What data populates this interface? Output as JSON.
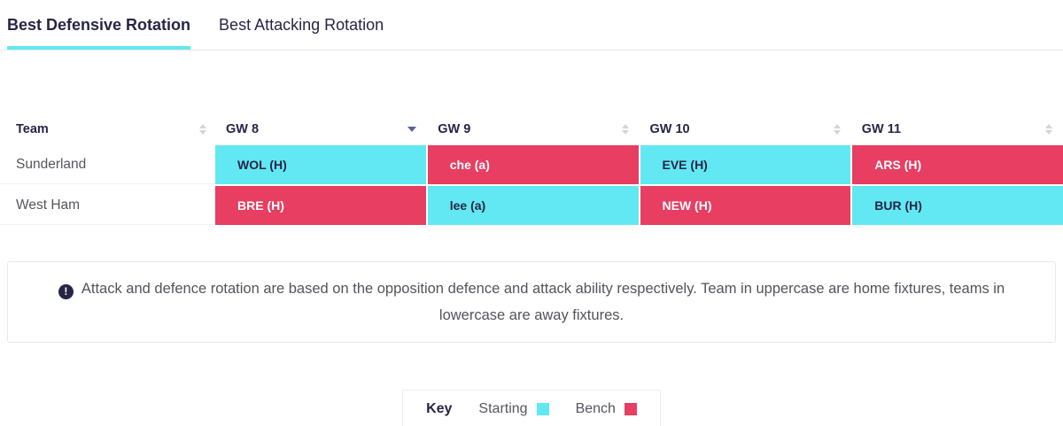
{
  "tabs": [
    {
      "label": "Best Defensive Rotation",
      "active": true
    },
    {
      "label": "Best Attacking Rotation",
      "active": false
    }
  ],
  "table": {
    "columns": [
      {
        "label": "Team",
        "sort": "none"
      },
      {
        "label": "GW 8",
        "sort": "desc"
      },
      {
        "label": "GW 9",
        "sort": "none"
      },
      {
        "label": "GW 10",
        "sort": "none"
      },
      {
        "label": "GW 11",
        "sort": "none"
      }
    ],
    "rows": [
      {
        "team": "Sunderland",
        "fixtures": [
          {
            "label": "WOL (H)",
            "status": "starting"
          },
          {
            "label": "che (a)",
            "status": "bench"
          },
          {
            "label": "EVE (H)",
            "status": "starting"
          },
          {
            "label": "ARS (H)",
            "status": "bench"
          }
        ]
      },
      {
        "team": "West Ham",
        "fixtures": [
          {
            "label": "BRE (H)",
            "status": "bench"
          },
          {
            "label": "lee (a)",
            "status": "starting"
          },
          {
            "label": "NEW (H)",
            "status": "bench"
          },
          {
            "label": "BUR (H)",
            "status": "starting"
          }
        ]
      }
    ]
  },
  "note": {
    "icon": "exclamation-circle-icon",
    "text": "Attack and defence rotation are based on the opposition defence and attack ability respectively. Team in uppercase are home fixtures, teams in lowercase are away fixtures."
  },
  "key": {
    "title": "Key",
    "items": [
      {
        "label": "Starting",
        "color": "#62e8f2"
      },
      {
        "label": "Bench",
        "color": "#e73e62"
      }
    ]
  },
  "colors": {
    "starting": "#62e8f2",
    "bench": "#e73e62",
    "navy": "#272545"
  }
}
